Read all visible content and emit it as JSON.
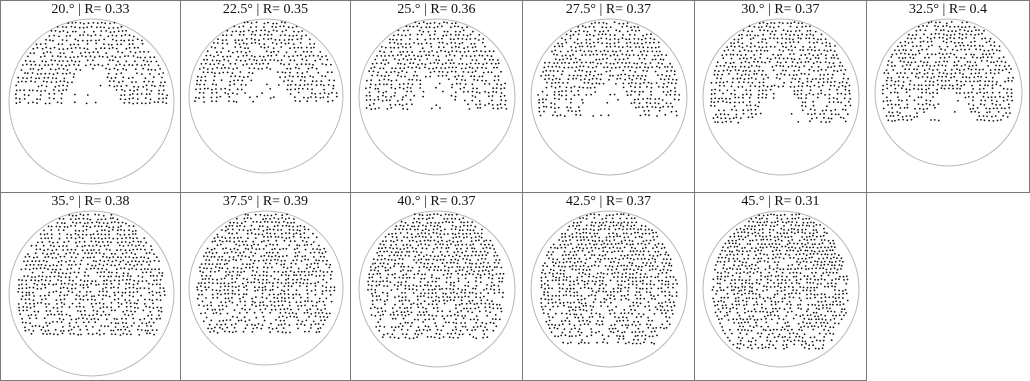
{
  "panels": [
    {
      "label": "20.° | R= 0.33",
      "angle": 20.0,
      "r": 0.33
    },
    {
      "label": "22.5° | R= 0.35",
      "angle": 22.5,
      "r": 0.35
    },
    {
      "label": "25.° | R= 0.36",
      "angle": 25.0,
      "r": 0.36
    },
    {
      "label": "27.5° | R= 0.37",
      "angle": 27.5,
      "r": 0.37
    },
    {
      "label": "30.° | R= 0.37",
      "angle": 30.0,
      "r": 0.37
    },
    {
      "label": "32.5° | R= 0.4",
      "angle": 32.5,
      "r": 0.4
    },
    {
      "label": "35.° | R= 0.38",
      "angle": 35.0,
      "r": 0.38
    },
    {
      "label": "37.5° | R= 0.39",
      "angle": 37.5,
      "r": 0.39
    },
    {
      "label": "40.° | R= 0.37",
      "angle": 40.0,
      "r": 0.37
    },
    {
      "label": "42.5° | R= 0.37",
      "angle": 42.5,
      "r": 0.37
    },
    {
      "label": "45.° | R= 0.31",
      "angle": 45.0,
      "r": 0.31
    }
  ],
  "colors": {
    "circle": "#b8b8b8",
    "dots": "#111111",
    "grid": "#7a7a7a"
  }
}
